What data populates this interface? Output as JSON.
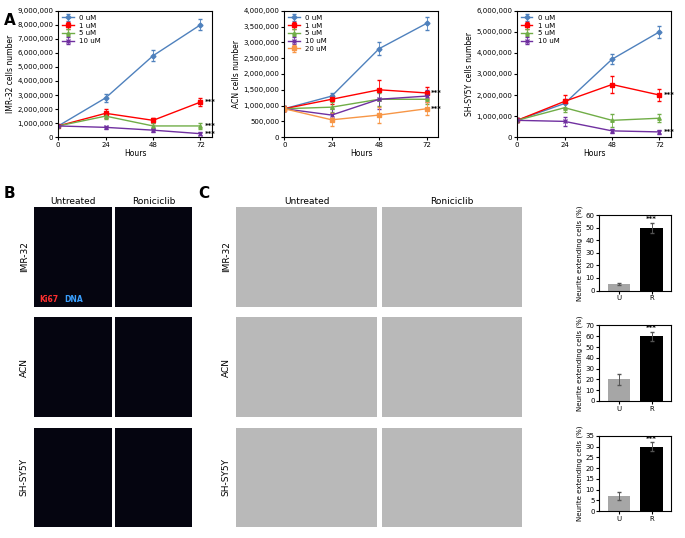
{
  "panel_labels": [
    "A",
    "B",
    "C"
  ],
  "chart_data": [
    {
      "type": "line",
      "x_label": "Hours",
      "y_label": "IMR-32 cells number",
      "x": [
        0,
        24,
        48,
        72
      ],
      "xlim": [
        0,
        78
      ],
      "xticks": [
        0,
        24,
        48,
        72
      ],
      "ylim": [
        0,
        9000000
      ],
      "yticks": [
        0,
        {
          "value": 1000000,
          "label": "1,000,000"
        },
        {
          "value": 2000000,
          "label": "2,000,000"
        },
        {
          "value": 3000000,
          "label": "3,000,000"
        },
        {
          "value": 4000000,
          "label": "4,000,000"
        },
        {
          "value": 5000000,
          "label": "5,000,000"
        },
        {
          "value": 6000000,
          "label": "6,000,000"
        },
        {
          "value": 7000000,
          "label": "7,000,000"
        },
        {
          "value": 8000000,
          "label": "8,000,000"
        },
        {
          "value": 9000000,
          "label": "9,000,000"
        }
      ],
      "legend": "upper left",
      "series": [
        {
          "name": "0 uM",
          "color": "#4f81bd",
          "marker": "diamond",
          "values": [
            800000,
            2800000,
            5800000,
            8000000
          ],
          "errors": [
            100000,
            300000,
            400000,
            400000
          ]
        },
        {
          "name": "1 uM",
          "color": "#ff0000",
          "marker": "square",
          "values": [
            800000,
            1700000,
            1200000,
            2500000
          ],
          "errors": [
            100000,
            300000,
            200000,
            300000
          ]
        },
        {
          "name": "5 uM",
          "color": "#70ad47",
          "marker": "triangle",
          "values": [
            800000,
            1500000,
            800000,
            800000
          ],
          "errors": [
            100000,
            200000,
            200000,
            200000
          ]
        },
        {
          "name": "10 uM",
          "color": "#7030a0",
          "marker": "x",
          "values": [
            800000,
            700000,
            500000,
            250000
          ],
          "errors": [
            100000,
            100000,
            100000,
            100000
          ]
        }
      ],
      "annotations": [
        {
          "text": "***",
          "series": "1 uM"
        },
        {
          "text": "***",
          "series": "5 uM"
        },
        {
          "text": "***",
          "series": "10 uM"
        }
      ]
    },
    {
      "type": "line",
      "x_label": "Hours",
      "y_label": "ACN cells number",
      "x": [
        0,
        24,
        48,
        72
      ],
      "xlim": [
        0,
        78
      ],
      "xticks": [
        0,
        24,
        48,
        72
      ],
      "ylim": [
        0,
        4000000
      ],
      "yticks": [
        0,
        {
          "value": 500000,
          "label": "500,000"
        },
        {
          "value": 1000000,
          "label": "1,000,000"
        },
        {
          "value": 1500000,
          "label": "1,500,000"
        },
        {
          "value": 2000000,
          "label": "2,000,000"
        },
        {
          "value": 2500000,
          "label": "2,500,000"
        },
        {
          "value": 3000000,
          "label": "3,000,000"
        },
        {
          "value": 3500000,
          "label": "3,500,000"
        },
        {
          "value": 4000000,
          "label": "4,000,000"
        }
      ],
      "legend": "upper left",
      "series": [
        {
          "name": "0 uM",
          "color": "#4f81bd",
          "marker": "diamond",
          "values": [
            900000,
            1300000,
            2800000,
            3600000
          ],
          "errors": [
            80000,
            100000,
            200000,
            200000
          ]
        },
        {
          "name": "1 uM",
          "color": "#ff0000",
          "marker": "square",
          "values": [
            900000,
            1200000,
            1500000,
            1400000
          ],
          "errors": [
            80000,
            150000,
            300000,
            200000
          ]
        },
        {
          "name": "5 uM",
          "color": "#70ad47",
          "marker": "triangle",
          "values": [
            900000,
            950000,
            1200000,
            1200000
          ],
          "errors": [
            80000,
            150000,
            200000,
            150000
          ]
        },
        {
          "name": "10 uM",
          "color": "#7030a0",
          "marker": "x",
          "values": [
            900000,
            700000,
            1200000,
            1300000
          ],
          "errors": [
            80000,
            200000,
            300000,
            200000
          ]
        },
        {
          "name": "20 uM",
          "color": "#f79646",
          "marker": "square",
          "values": [
            900000,
            550000,
            700000,
            900000
          ],
          "errors": [
            80000,
            200000,
            250000,
            200000
          ]
        }
      ],
      "annotations": [
        {
          "text": "***",
          "series": "1 uM"
        },
        {
          "text": "***",
          "series": "20 uM"
        }
      ]
    },
    {
      "type": "line",
      "x_label": "Hours",
      "y_label": "SH-SY5Y cells number",
      "x": [
        0,
        24,
        48,
        72
      ],
      "xlim": [
        0,
        78
      ],
      "xticks": [
        0,
        24,
        48,
        72
      ],
      "ylim": [
        0,
        6000000
      ],
      "yticks": [
        0,
        {
          "value": 1000000,
          "label": "1,000,000"
        },
        {
          "value": 2000000,
          "label": "2,000,000"
        },
        {
          "value": 3000000,
          "label": "3,000,000"
        },
        {
          "value": 4000000,
          "label": "4,000,000"
        },
        {
          "value": 5000000,
          "label": "5,000,000"
        },
        {
          "value": 6000000,
          "label": "6,000,000"
        }
      ],
      "legend": "upper left",
      "series": [
        {
          "name": "0 uM",
          "color": "#4f81bd",
          "marker": "diamond",
          "values": [
            800000,
            1600000,
            3700000,
            5000000
          ],
          "errors": [
            100000,
            200000,
            250000,
            300000
          ]
        },
        {
          "name": "1 uM",
          "color": "#ff0000",
          "marker": "square",
          "values": [
            800000,
            1700000,
            2500000,
            2000000
          ],
          "errors": [
            100000,
            300000,
            400000,
            300000
          ]
        },
        {
          "name": "5 uM",
          "color": "#70ad47",
          "marker": "triangle",
          "values": [
            800000,
            1400000,
            800000,
            900000
          ],
          "errors": [
            100000,
            200000,
            300000,
            200000
          ]
        },
        {
          "name": "10 uM",
          "color": "#7030a0",
          "marker": "x",
          "values": [
            800000,
            750000,
            300000,
            250000
          ],
          "errors": [
            100000,
            200000,
            100000,
            100000
          ]
        }
      ],
      "annotations": [
        {
          "text": "***",
          "series": "1 uM"
        },
        {
          "text": "***",
          "series": "10 uM"
        }
      ]
    },
    {
      "type": "bar",
      "y_label": "Neurite extending cells (%)",
      "categories": [
        "U",
        "R"
      ],
      "values": [
        5,
        50
      ],
      "errors": [
        1,
        4
      ],
      "colors": [
        "#a6a6a6",
        "#000000"
      ],
      "ylim": [
        0,
        60
      ],
      "yticks": [
        0,
        10,
        20,
        30,
        40,
        50,
        60
      ],
      "annotations": [
        {
          "text": "***",
          "category": "R"
        }
      ]
    },
    {
      "type": "bar",
      "y_label": "Neurite extending cells (%)",
      "categories": [
        "U",
        "R"
      ],
      "values": [
        20,
        60
      ],
      "errors": [
        5,
        4
      ],
      "colors": [
        "#a6a6a6",
        "#000000"
      ],
      "ylim": [
        0,
        70
      ],
      "yticks": [
        0,
        10,
        20,
        30,
        40,
        50,
        60,
        70
      ],
      "annotations": [
        {
          "text": "***",
          "category": "R"
        }
      ]
    },
    {
      "type": "bar",
      "y_label": "Neurite extending cells (%)",
      "categories": [
        "U",
        "R"
      ],
      "values": [
        7,
        30
      ],
      "errors": [
        2,
        2
      ],
      "colors": [
        "#a6a6a6",
        "#000000"
      ],
      "ylim": [
        0,
        35
      ],
      "yticks": [
        0,
        5,
        10,
        15,
        20,
        25,
        30,
        35
      ],
      "annotations": [
        {
          "text": "***",
          "category": "R"
        }
      ]
    }
  ],
  "micrographs": {
    "B": {
      "columns": [
        "Untreated",
        "Roniciclib"
      ],
      "rows": [
        "IMR-32",
        "ACN",
        "SH-SY5Y"
      ],
      "stain_labels": [
        {
          "text": "Ki67",
          "color": "#ff3030"
        },
        {
          "text": "DNA",
          "color": "#3aa0ff"
        }
      ]
    },
    "C": {
      "columns": [
        "Untreated",
        "Roniciclib"
      ],
      "rows": [
        "IMR-32",
        "ACN",
        "SH-SY5Y"
      ]
    }
  }
}
